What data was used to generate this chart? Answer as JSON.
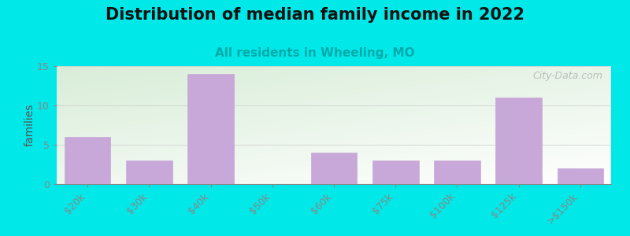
{
  "title": "Distribution of median family income in 2022",
  "subtitle": "All residents in Wheeling, MO",
  "categories": [
    "$20k",
    "$30k",
    "$40k",
    "$50k",
    "$60k",
    "$75k",
    "$100k",
    "$125k",
    ">$150k"
  ],
  "values": [
    6,
    3,
    14,
    0,
    4,
    3,
    3,
    11,
    2
  ],
  "bar_color": "#c8a8d8",
  "bar_edgecolor": "#c8a8d8",
  "background_color": "#00e8e8",
  "plot_bg_top_left": "#d8edd8",
  "plot_bg_bottom_right": "#f5f5f5",
  "ylim": [
    0,
    15
  ],
  "yticks": [
    0,
    5,
    10,
    15
  ],
  "ylabel": "families",
  "title_fontsize": 15,
  "subtitle_fontsize": 11,
  "subtitle_color": "#00aaaa",
  "watermark": "City-Data.com",
  "watermark_color": "#b0b0b0"
}
